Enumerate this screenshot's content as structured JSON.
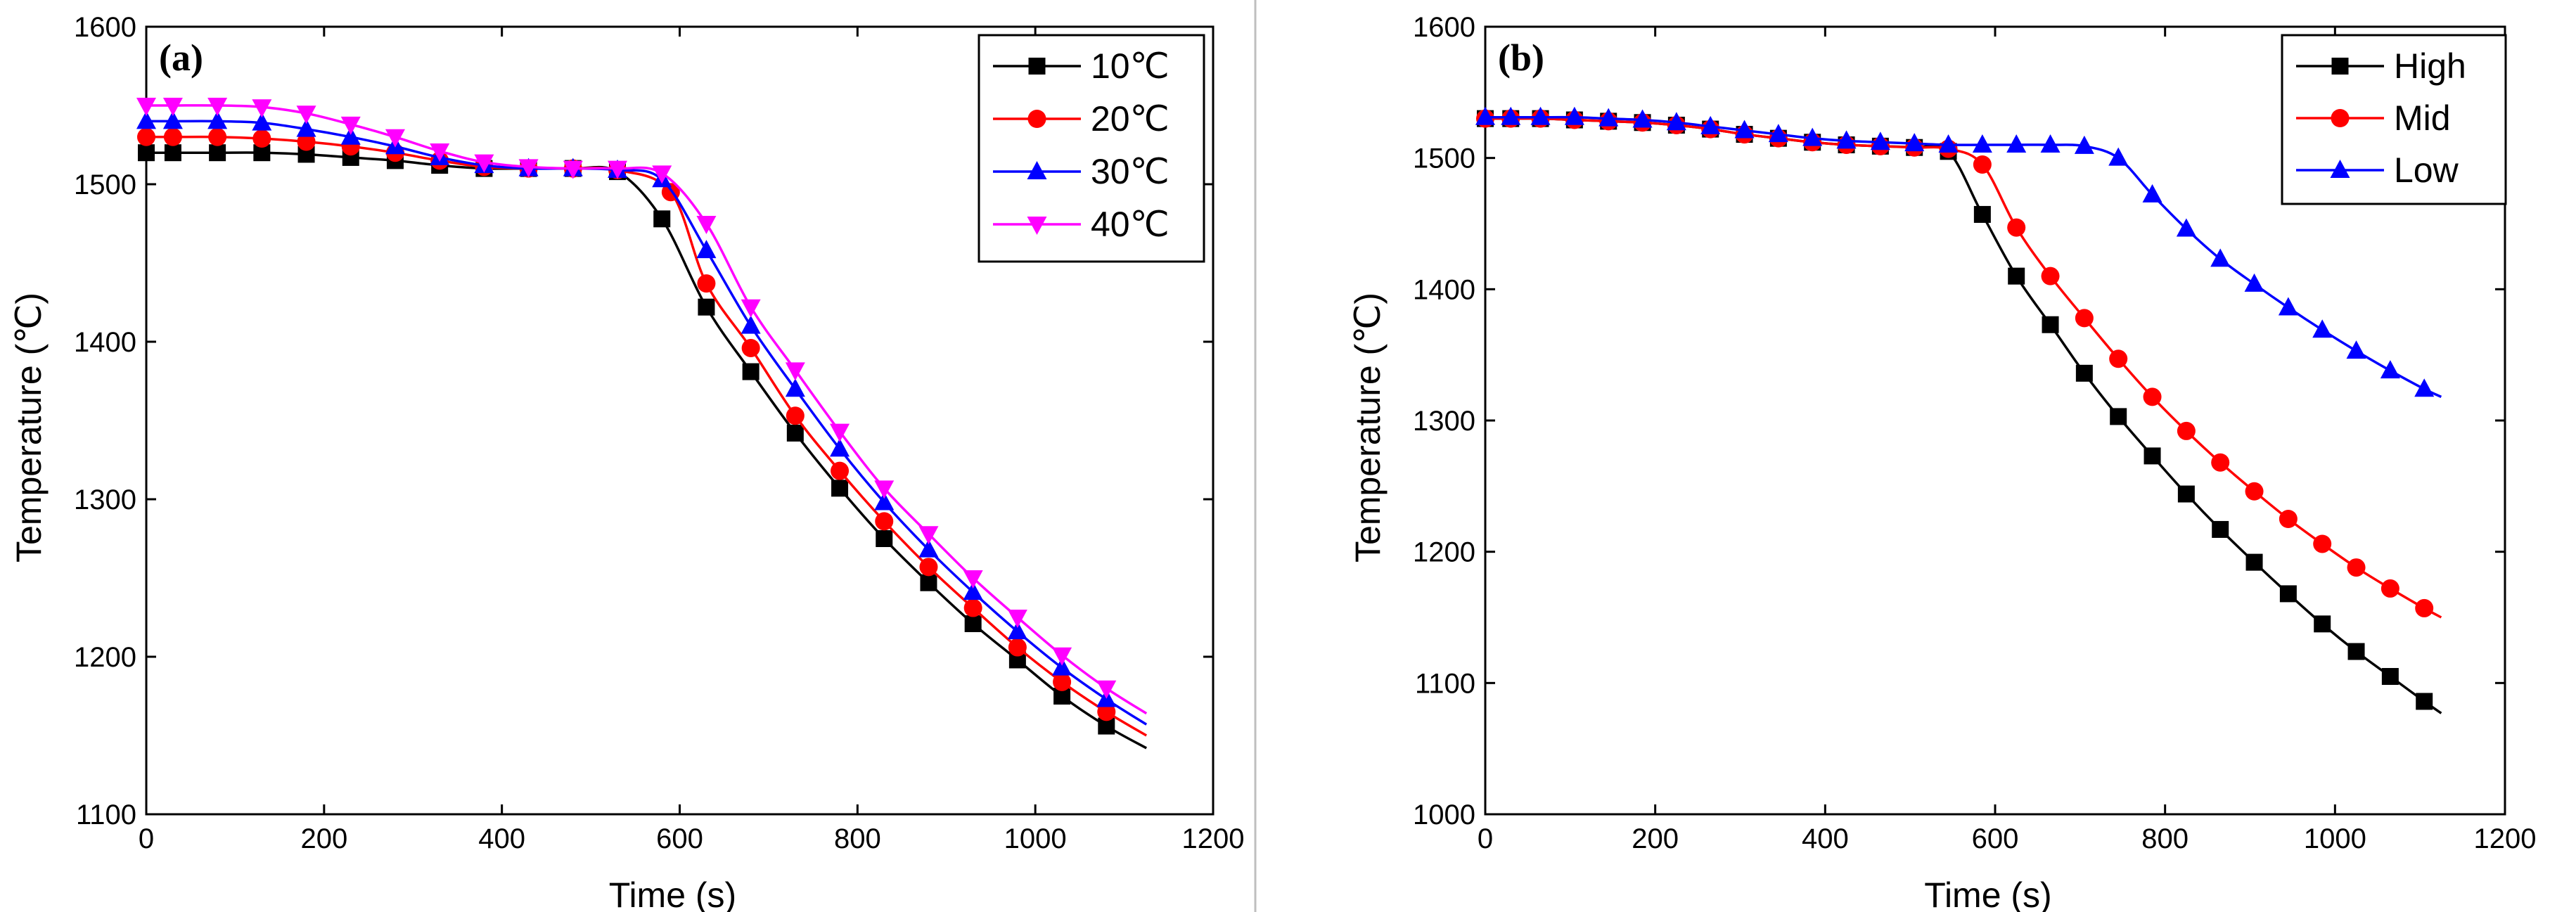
{
  "chart_data": [
    {
      "type": "line",
      "panel_label": "(a)",
      "xlabel": "Time (s)",
      "ylabel": "Temperature (℃)",
      "xlim": [
        0,
        1200
      ],
      "ylim": [
        1100,
        1600
      ],
      "xticks": [
        "0",
        "200",
        "400",
        "600",
        "800",
        "1000",
        "1200"
      ],
      "yticks": [
        "1100",
        "1200",
        "1300",
        "1400",
        "1500",
        "1600"
      ],
      "grid": false,
      "legend_position": "top-right",
      "series": [
        {
          "name": "10℃",
          "color": "#000000",
          "marker": "square",
          "x": [
            0,
            30,
            80,
            130,
            180,
            230,
            280,
            330,
            380,
            430,
            480,
            530,
            580,
            630,
            680,
            730,
            780,
            830,
            880,
            930,
            980,
            1030,
            1080,
            1125
          ],
          "y": [
            1520,
            1520,
            1520,
            1520,
            1519,
            1517,
            1515,
            1512,
            1510,
            1510,
            1510,
            1508,
            1478,
            1422,
            1381,
            1342,
            1307,
            1275,
            1247,
            1221,
            1198,
            1175,
            1156,
            1142
          ]
        },
        {
          "name": "20℃",
          "color": "#ff0000",
          "marker": "circle",
          "x": [
            0,
            30,
            80,
            130,
            180,
            230,
            280,
            330,
            380,
            430,
            480,
            530,
            590,
            630,
            680,
            730,
            780,
            830,
            880,
            930,
            980,
            1030,
            1080,
            1125
          ],
          "y": [
            1530,
            1530,
            1530,
            1529,
            1527,
            1524,
            1520,
            1515,
            1511,
            1510,
            1510,
            1509,
            1495,
            1437,
            1396,
            1353,
            1318,
            1286,
            1257,
            1231,
            1206,
            1184,
            1165,
            1150
          ]
        },
        {
          "name": "30℃",
          "color": "#0000ff",
          "marker": "triangle-up",
          "x": [
            0,
            30,
            80,
            130,
            180,
            230,
            280,
            330,
            380,
            430,
            480,
            530,
            580,
            630,
            680,
            730,
            780,
            830,
            880,
            930,
            980,
            1030,
            1080,
            1125
          ],
          "y": [
            1540,
            1540,
            1540,
            1539,
            1535,
            1530,
            1524,
            1517,
            1512,
            1510,
            1510,
            1509,
            1503,
            1458,
            1410,
            1370,
            1332,
            1298,
            1268,
            1241,
            1216,
            1193,
            1173,
            1157
          ]
        },
        {
          "name": "40℃",
          "color": "#ff00ff",
          "marker": "triangle-down",
          "x": [
            0,
            30,
            80,
            130,
            180,
            230,
            280,
            330,
            380,
            430,
            480,
            530,
            580,
            630,
            680,
            730,
            780,
            830,
            880,
            930,
            980,
            1030,
            1080,
            1125
          ],
          "y": [
            1550,
            1550,
            1550,
            1549,
            1545,
            1538,
            1530,
            1521,
            1514,
            1511,
            1510,
            1510,
            1507,
            1475,
            1422,
            1382,
            1343,
            1307,
            1278,
            1250,
            1225,
            1201,
            1180,
            1164
          ]
        }
      ]
    },
    {
      "type": "line",
      "panel_label": "(b)",
      "xlabel": "Time (s)",
      "ylabel": "Temperature (℃)",
      "xlim": [
        0,
        1200
      ],
      "ylim": [
        1000,
        1600
      ],
      "xticks": [
        "0",
        "200",
        "400",
        "600",
        "800",
        "1000",
        "1200"
      ],
      "yticks": [
        "1000",
        "1100",
        "1200",
        "1300",
        "1400",
        "1500",
        "1600"
      ],
      "grid": false,
      "legend_position": "top-right",
      "series": [
        {
          "name": "High",
          "color": "#000000",
          "marker": "square",
          "x": [
            0,
            30,
            65,
            105,
            145,
            185,
            225,
            265,
            305,
            345,
            385,
            425,
            465,
            505,
            545,
            585,
            625,
            665,
            705,
            745,
            785,
            825,
            865,
            905,
            945,
            985,
            1025,
            1065,
            1105,
            1125
          ],
          "y": [
            1530,
            1530,
            1530,
            1529,
            1528,
            1527,
            1525,
            1522,
            1518,
            1515,
            1512,
            1510,
            1509,
            1508,
            1505,
            1457,
            1410,
            1373,
            1336,
            1303,
            1273,
            1244,
            1217,
            1192,
            1168,
            1145,
            1124,
            1105,
            1086,
            1077
          ]
        },
        {
          "name": "Mid",
          "color": "#ff0000",
          "marker": "circle",
          "x": [
            0,
            30,
            65,
            105,
            145,
            185,
            225,
            265,
            305,
            345,
            385,
            425,
            465,
            505,
            545,
            585,
            625,
            665,
            705,
            745,
            785,
            825,
            865,
            905,
            945,
            985,
            1025,
            1065,
            1105,
            1125
          ],
          "y": [
            1530,
            1530,
            1530,
            1529,
            1528,
            1527,
            1525,
            1522,
            1518,
            1515,
            1512,
            1510,
            1509,
            1508,
            1507,
            1495,
            1447,
            1410,
            1378,
            1347,
            1318,
            1292,
            1268,
            1246,
            1225,
            1206,
            1188,
            1172,
            1157,
            1150
          ]
        },
        {
          "name": "Low",
          "color": "#0000ff",
          "marker": "triangle-up",
          "x": [
            0,
            30,
            65,
            105,
            145,
            185,
            225,
            265,
            305,
            345,
            385,
            425,
            465,
            505,
            545,
            585,
            625,
            665,
            705,
            745,
            785,
            825,
            865,
            905,
            945,
            985,
            1025,
            1065,
            1105,
            1125
          ],
          "y": [
            1531,
            1531,
            1531,
            1531,
            1530,
            1529,
            1527,
            1524,
            1521,
            1518,
            1515,
            1513,
            1512,
            1511,
            1510,
            1510,
            1510,
            1510,
            1509,
            1500,
            1472,
            1446,
            1423,
            1404,
            1386,
            1369,
            1353,
            1338,
            1324,
            1318
          ]
        }
      ]
    }
  ]
}
